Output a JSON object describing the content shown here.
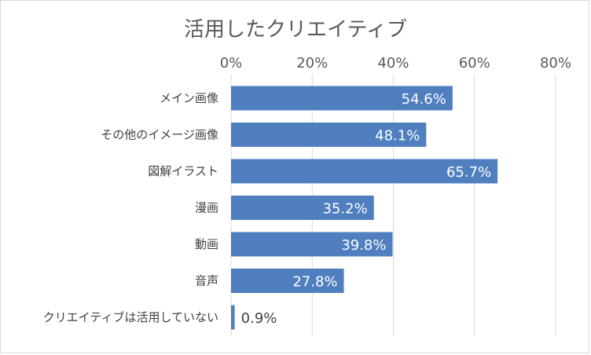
{
  "chart_data": {
    "type": "bar",
    "orientation": "horizontal",
    "title": "活用したクリエイティブ",
    "categories": [
      "メイン画像",
      "その他のイメージ画像",
      "図解イラスト",
      "漫画",
      "動画",
      "音声",
      "クリエイティブは活用していない"
    ],
    "values": [
      54.6,
      48.1,
      65.7,
      35.2,
      39.8,
      27.8,
      0.9
    ],
    "value_labels": [
      "54.6%",
      "48.1%",
      "65.7%",
      "35.2%",
      "39.8%",
      "27.8%",
      "0.9%"
    ],
    "xticks": [
      "0%",
      "20%",
      "40%",
      "60%",
      "80%"
    ],
    "xlim": [
      0,
      80
    ],
    "grid": true,
    "axis_position": "top",
    "colors": {
      "bar": "#4F7FBF"
    }
  }
}
